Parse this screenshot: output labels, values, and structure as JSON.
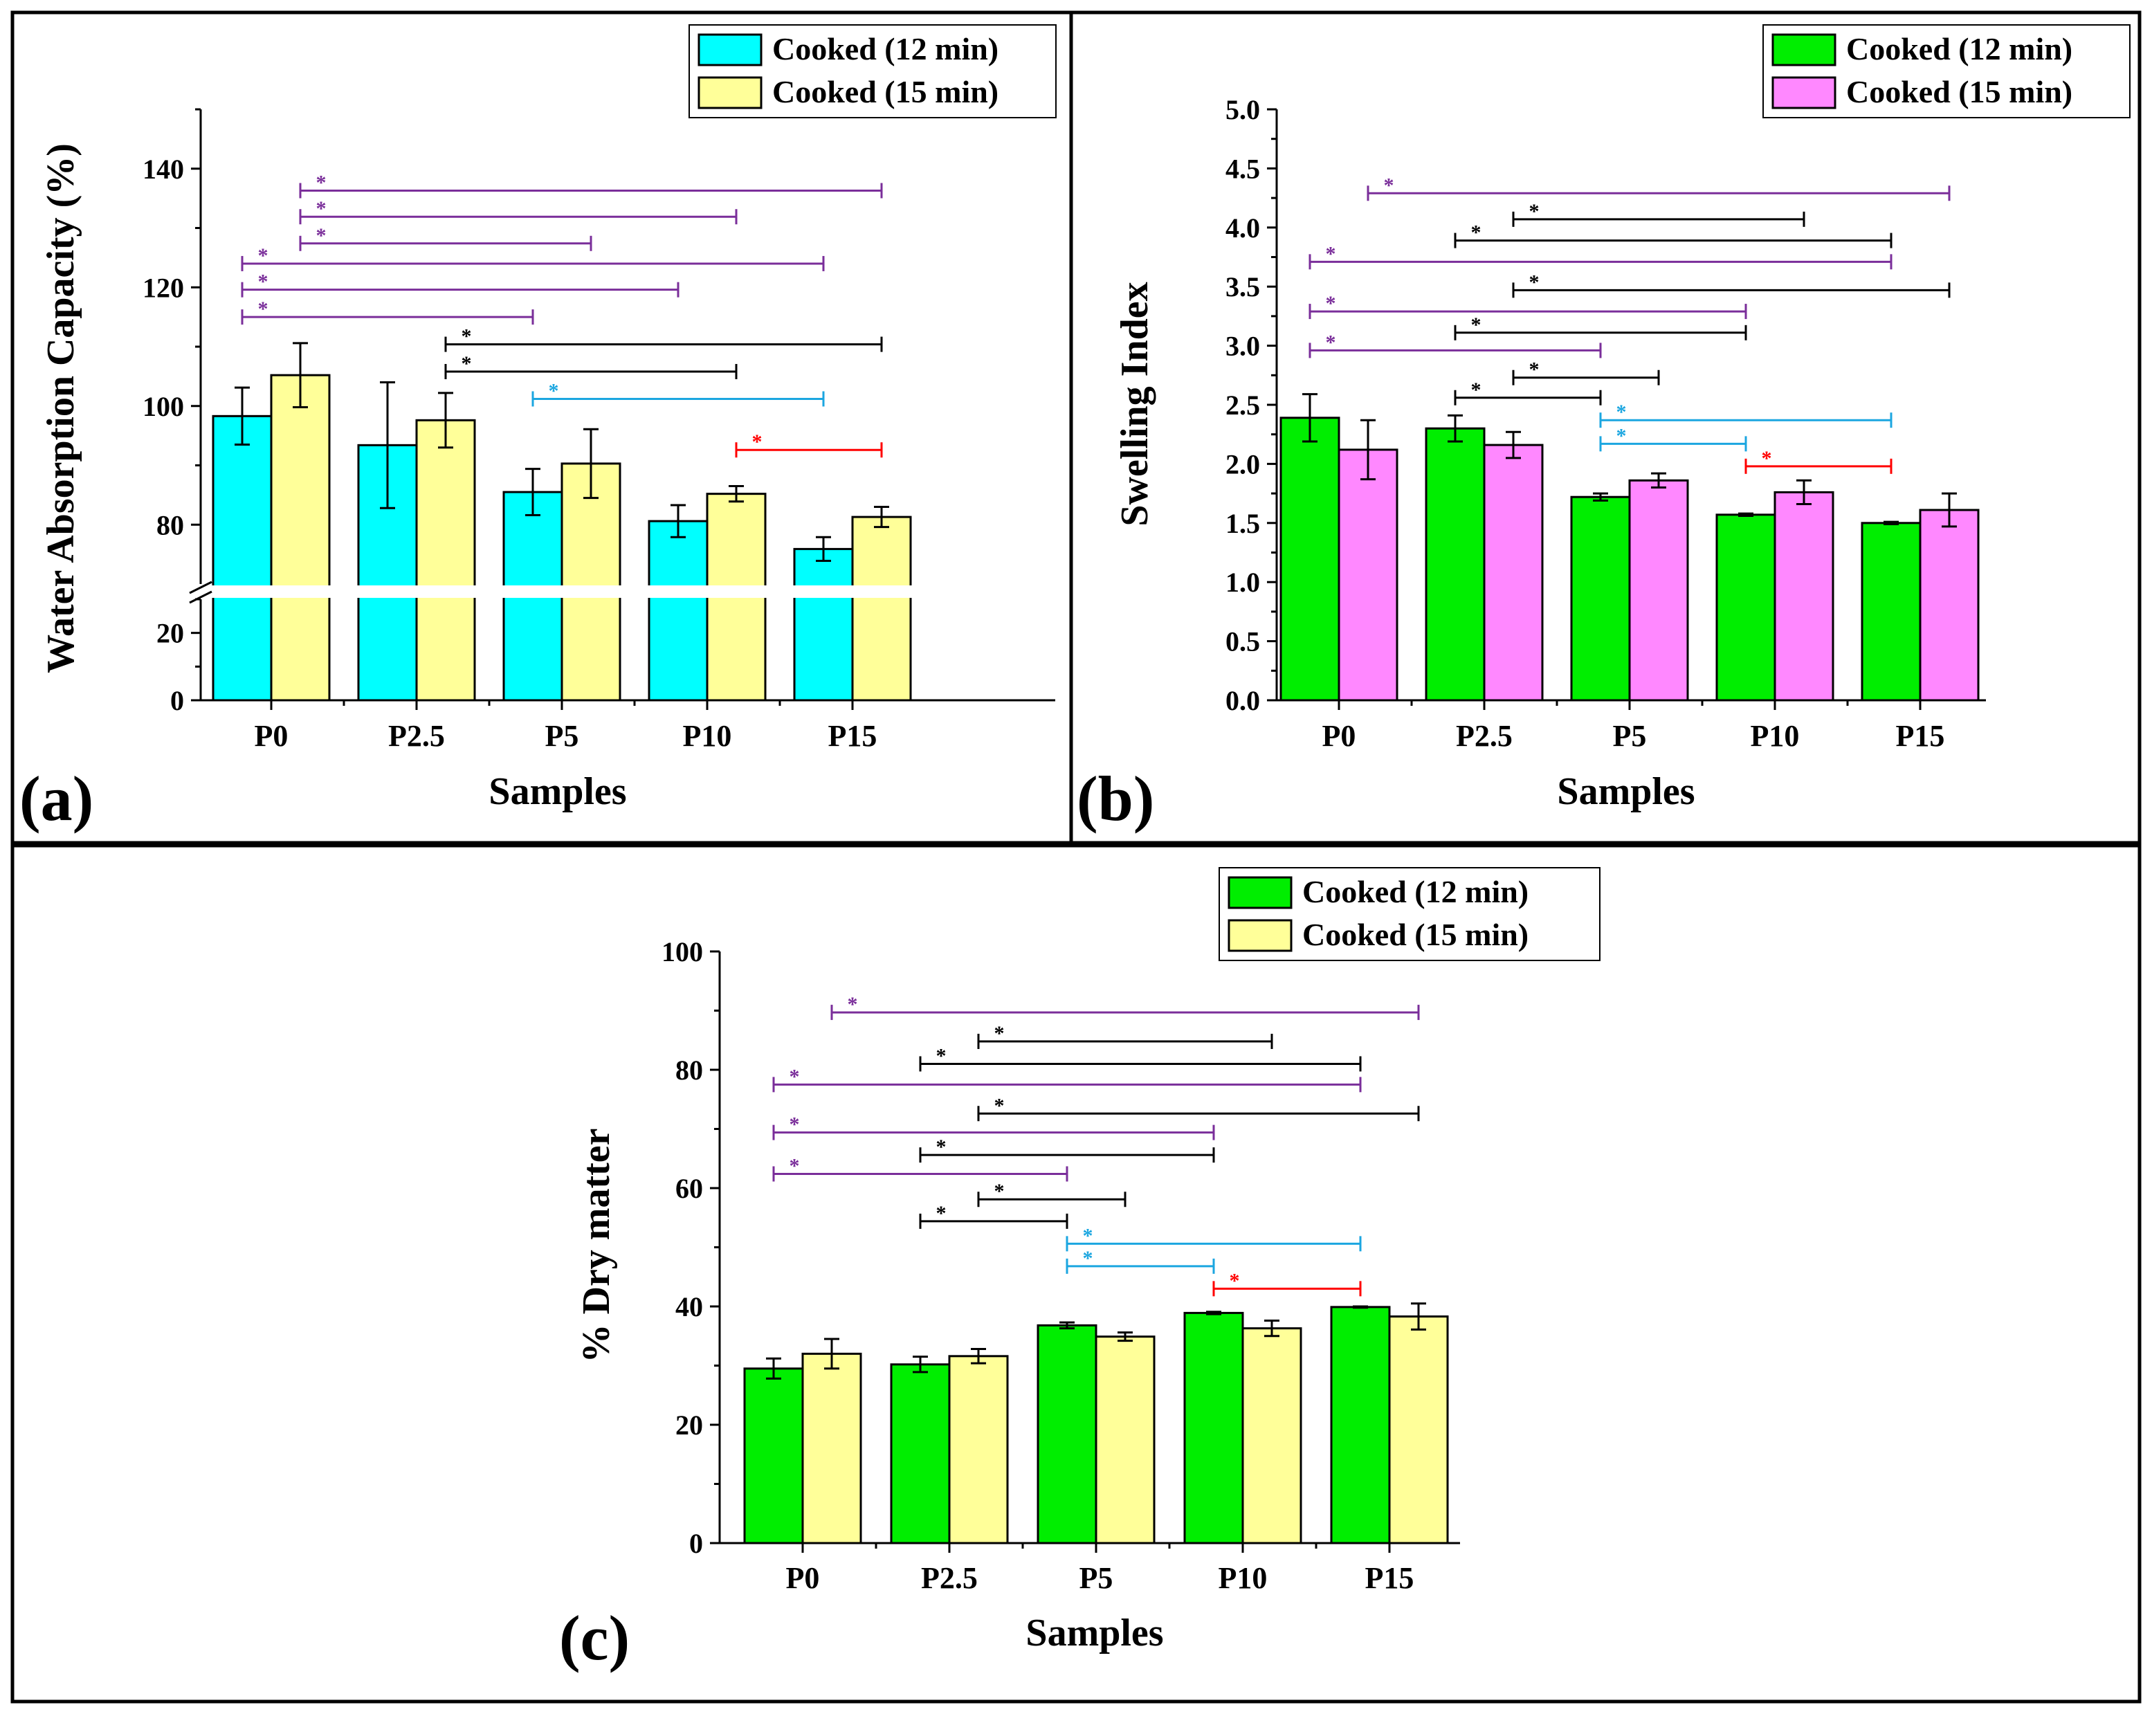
{
  "figure": {
    "panel_labels": [
      "(a)",
      "(b)",
      "(c)"
    ]
  },
  "colors": {
    "cyan": "#00FFFF",
    "yellow": "#FFFF99",
    "green": "#00EE00",
    "pink": "#FF88FF",
    "purple": "#7A2E9A",
    "black": "#000000",
    "blue": "#1BA6E0",
    "red": "#FF0000"
  },
  "chart_data": [
    {
      "id": "a",
      "type": "bar",
      "categories": [
        "P0",
        "P2.5",
        "P5",
        "P10",
        "P15"
      ],
      "xlabel": "Samples",
      "ylabel": "Water Absorption Capacity (%)",
      "axis_break": {
        "lower": [
          0,
          30
        ],
        "upper": [
          70,
          150
        ]
      },
      "yticks_lower": [
        0,
        20
      ],
      "yticks_upper": [
        80,
        100,
        120,
        140
      ],
      "legend_position": "top-right",
      "series": [
        {
          "name": "Cooked (12 min)",
          "color": "#00FFFF",
          "values": [
            98.3,
            93.4,
            85.5,
            80.6,
            75.9
          ],
          "errors": [
            4.8,
            10.6,
            3.9,
            2.7,
            2.0
          ]
        },
        {
          "name": "Cooked (15 min)",
          "color": "#FFFF99",
          "values": [
            105.2,
            97.6,
            90.3,
            85.2,
            81.3
          ],
          "errors": [
            5.4,
            4.6,
            5.8,
            1.3,
            1.7
          ]
        }
      ],
      "significance": [
        {
          "from": "P0:1",
          "to": "P15:1",
          "value": 136.3,
          "label": "*",
          "color": "purple"
        },
        {
          "from": "P0:1",
          "to": "P10:1",
          "value": 131.9,
          "label": "*",
          "color": "purple"
        },
        {
          "from": "P0:1",
          "to": "P5:1",
          "value": 127.4,
          "label": "*",
          "color": "purple"
        },
        {
          "from": "P0:0",
          "to": "P15:0",
          "value": 124.0,
          "label": "*",
          "color": "purple"
        },
        {
          "from": "P0:0",
          "to": "P10:0",
          "value": 119.6,
          "label": "*",
          "color": "purple"
        },
        {
          "from": "P0:0",
          "to": "P5:0",
          "value": 115.0,
          "label": "*",
          "color": "purple"
        },
        {
          "from": "P2.5:1",
          "to": "P15:1",
          "value": 110.4,
          "label": "*",
          "color": "black"
        },
        {
          "from": "P2.5:1",
          "to": "P10:1",
          "value": 105.8,
          "label": "*",
          "color": "black"
        },
        {
          "from": "P5:0",
          "to": "P15:0",
          "value": 101.2,
          "label": "*",
          "color": "blue"
        },
        {
          "from": "P10:1",
          "to": "P15:1",
          "value": 92.6,
          "label": "*",
          "color": "red"
        }
      ]
    },
    {
      "id": "b",
      "type": "bar",
      "categories": [
        "P0",
        "P2.5",
        "P5",
        "P10",
        "P15"
      ],
      "xlabel": "Samples",
      "ylabel": "Swelling Index",
      "ylim": [
        0,
        5
      ],
      "yticks": [
        "0.0",
        "0.5",
        "1.0",
        "1.5",
        "2.0",
        "2.5",
        "3.0",
        "3.5",
        "4.0",
        "4.5",
        "5.0"
      ],
      "legend_position": "top-right",
      "series": [
        {
          "name": "Cooked (12 min)",
          "color": "#00EE00",
          "values": [
            2.39,
            2.3,
            1.72,
            1.57,
            1.5
          ],
          "errors": [
            0.2,
            0.11,
            0.03,
            0.01,
            0.01
          ]
        },
        {
          "name": "Cooked (15 min)",
          "color": "#FF88FF",
          "values": [
            2.12,
            2.16,
            1.86,
            1.76,
            1.61
          ],
          "errors": [
            0.25,
            0.11,
            0.06,
            0.1,
            0.14
          ]
        }
      ],
      "significance": [
        {
          "from": "P0:1",
          "to": "P15:1",
          "value": 4.29,
          "label": "*",
          "color": "purple"
        },
        {
          "from": "P2.5:1",
          "to": "P10:1",
          "value": 4.07,
          "label": "*",
          "color": "black"
        },
        {
          "from": "P2.5:0",
          "to": "P15:0",
          "value": 3.89,
          "label": "*",
          "color": "black"
        },
        {
          "from": "P0:0",
          "to": "P15:0",
          "value": 3.71,
          "label": "*",
          "color": "purple"
        },
        {
          "from": "P2.5:1",
          "to": "P15:1",
          "value": 3.47,
          "label": "*",
          "color": "black"
        },
        {
          "from": "P0:0",
          "to": "P10:0",
          "value": 3.29,
          "label": "*",
          "color": "purple"
        },
        {
          "from": "P2.5:0",
          "to": "P10:0",
          "value": 3.11,
          "label": "*",
          "color": "black"
        },
        {
          "from": "P0:0",
          "to": "P5:0",
          "value": 2.96,
          "label": "*",
          "color": "purple"
        },
        {
          "from": "P2.5:1",
          "to": "P5:1",
          "value": 2.73,
          "label": "*",
          "color": "black"
        },
        {
          "from": "P2.5:0",
          "to": "P5:0",
          "value": 2.56,
          "label": "*",
          "color": "black"
        },
        {
          "from": "P5:0",
          "to": "P15:0",
          "value": 2.37,
          "label": "*",
          "color": "blue"
        },
        {
          "from": "P5:0",
          "to": "P10:0",
          "value": 2.17,
          "label": "*",
          "color": "blue"
        },
        {
          "from": "P10:0",
          "to": "P15:0",
          "value": 1.98,
          "label": "*",
          "color": "red"
        }
      ]
    },
    {
      "id": "c",
      "type": "bar",
      "categories": [
        "P0",
        "P2.5",
        "P5",
        "P10",
        "P15"
      ],
      "xlabel": "Samples",
      "ylabel": "% Dry matter",
      "ylim": [
        0,
        100
      ],
      "yticks": [
        "0",
        "20",
        "40",
        "60",
        "80",
        "100"
      ],
      "legend_position": "top-right",
      "series": [
        {
          "name": "Cooked (12 min)",
          "color": "#00EE00",
          "values": [
            29.5,
            30.2,
            36.8,
            38.9,
            39.9
          ],
          "errors": [
            1.7,
            1.3,
            0.5,
            0.2,
            0.1
          ]
        },
        {
          "name": "Cooked (15 min)",
          "color": "#FFFF99",
          "values": [
            32.0,
            31.6,
            34.9,
            36.3,
            38.3
          ],
          "errors": [
            2.5,
            1.2,
            0.7,
            1.3,
            2.2
          ]
        }
      ],
      "significance": [
        {
          "from": "P0:1",
          "to": "P15:1",
          "value": 89.7,
          "label": "*",
          "color": "purple"
        },
        {
          "from": "P2.5:1",
          "to": "P10:1",
          "value": 84.8,
          "label": "*",
          "color": "black"
        },
        {
          "from": "P2.5:0",
          "to": "P15:0",
          "value": 81.0,
          "label": "*",
          "color": "black"
        },
        {
          "from": "P0:0",
          "to": "P15:0",
          "value": 77.5,
          "label": "*",
          "color": "purple"
        },
        {
          "from": "P2.5:1",
          "to": "P15:1",
          "value": 72.6,
          "label": "*",
          "color": "black"
        },
        {
          "from": "P0:0",
          "to": "P10:0",
          "value": 69.4,
          "label": "*",
          "color": "purple"
        },
        {
          "from": "P2.5:0",
          "to": "P10:0",
          "value": 65.6,
          "label": "*",
          "color": "black"
        },
        {
          "from": "P0:0",
          "to": "P5:0",
          "value": 62.4,
          "label": "*",
          "color": "purple"
        },
        {
          "from": "P2.5:1",
          "to": "P5:1",
          "value": 58.1,
          "label": "*",
          "color": "black"
        },
        {
          "from": "P2.5:0",
          "to": "P5:0",
          "value": 54.4,
          "label": "*",
          "color": "black"
        },
        {
          "from": "P5:0",
          "to": "P15:0",
          "value": 50.6,
          "label": "*",
          "color": "blue"
        },
        {
          "from": "P5:0",
          "to": "P10:0",
          "value": 46.8,
          "label": "*",
          "color": "blue"
        },
        {
          "from": "P10:0",
          "to": "P15:0",
          "value": 43.0,
          "label": "*",
          "color": "red"
        }
      ]
    }
  ]
}
